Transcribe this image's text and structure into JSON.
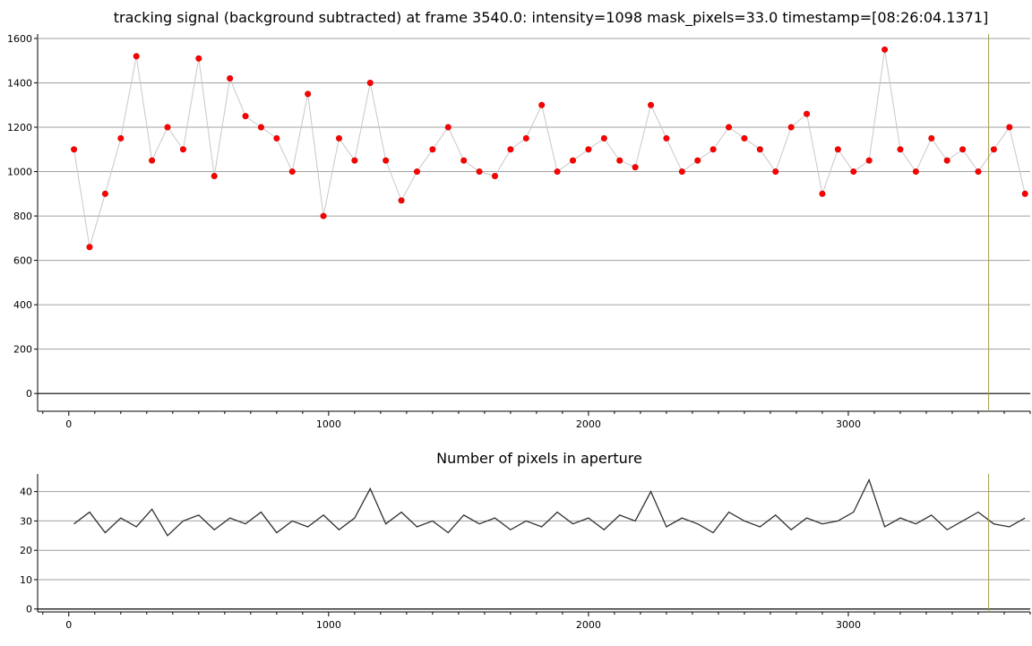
{
  "chart_data": [
    {
      "type": "scatter",
      "title": "tracking signal (background subtracted) at frame 3540.0: intensity=1098 mask_pixels=33.0 timestamp=[08:26:04.1371]",
      "xlabel": "",
      "ylabel": "",
      "xlim": [
        -120,
        3700
      ],
      "ylim": [
        -80,
        1620
      ],
      "x_ticks": [
        0,
        1000,
        2000,
        3000
      ],
      "y_ticks": [
        0,
        200,
        400,
        600,
        800,
        1000,
        1200,
        1400,
        1600
      ],
      "grid": "horizontal",
      "marker_color": "#ff0000",
      "line_color": "#c8c8c8",
      "cursor_x": 3540,
      "cursor_color": "#a0a050",
      "series": [
        {
          "x": [
            20,
            80,
            140,
            200,
            260,
            320,
            380,
            440,
            500,
            560,
            620,
            680,
            740,
            800,
            860,
            920,
            980,
            1040,
            1100,
            1160,
            1220,
            1280,
            1340,
            1400,
            1460,
            1520,
            1580,
            1640,
            1700,
            1760,
            1820,
            1880,
            1940,
            2000,
            2060,
            2120,
            2180,
            2240,
            2300,
            2360,
            2420,
            2480,
            2540,
            2600,
            2660,
            2720,
            2780,
            2840,
            2900,
            2960,
            3020,
            3080,
            3140,
            3200,
            3260,
            3320,
            3380,
            3440,
            3500,
            3560,
            3620,
            3680
          ],
          "values": [
            1100,
            660,
            900,
            1150,
            1520,
            1050,
            1200,
            1100,
            1510,
            980,
            1420,
            1250,
            1200,
            1150,
            1000,
            1350,
            800,
            1150,
            1050,
            1400,
            1050,
            870,
            1000,
            1100,
            1200,
            1050,
            1000,
            980,
            1100,
            1150,
            1300,
            1000,
            1050,
            1100,
            1150,
            1050,
            1020,
            1300,
            1150,
            1000,
            1050,
            1100,
            1200,
            1150,
            1100,
            1000,
            1200,
            1260,
            900,
            1100,
            1000,
            1050,
            1550,
            1100,
            1000,
            1150,
            1050,
            1100,
            1000,
            1100,
            1200,
            900
          ]
        }
      ]
    },
    {
      "type": "line",
      "title": "Number of pixels in aperture",
      "xlabel": "",
      "ylabel": "",
      "xlim": [
        -120,
        3700
      ],
      "ylim": [
        -1,
        46
      ],
      "x_ticks": [
        0,
        1000,
        2000,
        3000
      ],
      "y_ticks": [
        0,
        10,
        20,
        30,
        40
      ],
      "grid": "horizontal",
      "line_color": "#303030",
      "cursor_x": 3540,
      "cursor_color": "#a0a050",
      "series": [
        {
          "x": [
            20,
            80,
            140,
            200,
            260,
            320,
            380,
            440,
            500,
            560,
            620,
            680,
            740,
            800,
            860,
            920,
            980,
            1040,
            1100,
            1160,
            1220,
            1280,
            1340,
            1400,
            1460,
            1520,
            1580,
            1640,
            1700,
            1760,
            1820,
            1880,
            1940,
            2000,
            2060,
            2120,
            2180,
            2240,
            2300,
            2360,
            2420,
            2480,
            2540,
            2600,
            2660,
            2720,
            2780,
            2840,
            2900,
            2960,
            3020,
            3080,
            3140,
            3200,
            3260,
            3320,
            3380,
            3440,
            3500,
            3560,
            3620,
            3680
          ],
          "values": [
            29,
            33,
            26,
            31,
            28,
            34,
            25,
            30,
            32,
            27,
            31,
            29,
            33,
            26,
            30,
            28,
            32,
            27,
            31,
            41,
            29,
            33,
            28,
            30,
            26,
            32,
            29,
            31,
            27,
            30,
            28,
            33,
            29,
            31,
            27,
            32,
            30,
            40,
            28,
            31,
            29,
            26,
            33,
            30,
            28,
            32,
            27,
            31,
            29,
            30,
            33,
            44,
            28,
            31,
            29,
            32,
            27,
            30,
            33,
            29,
            28,
            31
          ]
        }
      ]
    }
  ]
}
